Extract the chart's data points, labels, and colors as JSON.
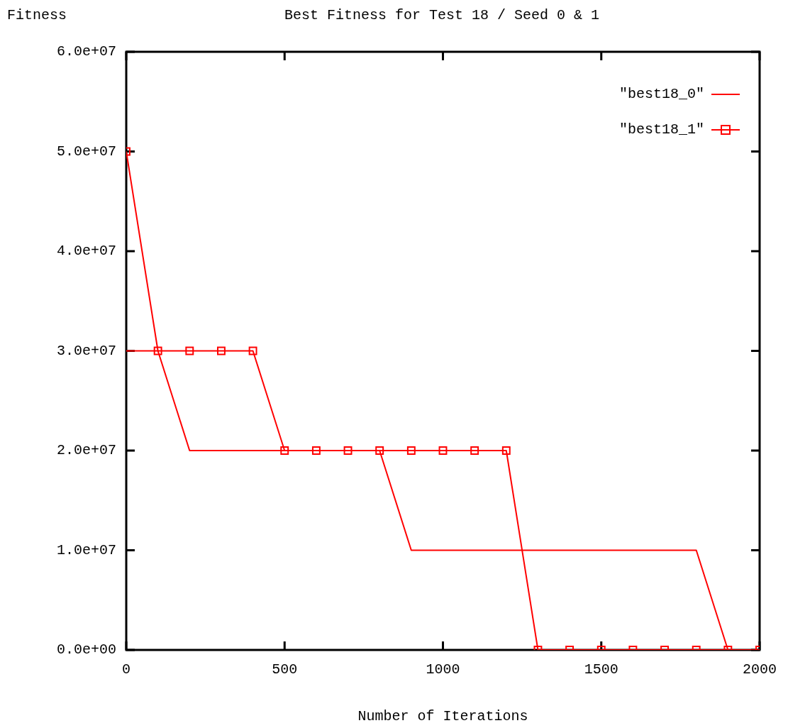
{
  "chart_data": {
    "type": "line",
    "title": "Best Fitness for Test 18 / Seed 0 & 1",
    "xlabel": "Number of Iterations",
    "ylabel": "Fitness",
    "x": [
      0,
      100,
      200,
      300,
      400,
      500,
      600,
      700,
      800,
      900,
      1000,
      1100,
      1200,
      1300,
      1400,
      1500,
      1600,
      1700,
      1800,
      1900,
      2000
    ],
    "series": [
      {
        "name": "\"best18_0\"",
        "color": "#ff0000",
        "marker": "none",
        "values": [
          30000000,
          30000000,
          20000000,
          20000000,
          20000000,
          20000000,
          20000000,
          20000000,
          20000000,
          10000000,
          10000000,
          10000000,
          10000000,
          10000000,
          10000000,
          10000000,
          10000000,
          10000000,
          10000000,
          0,
          0
        ]
      },
      {
        "name": "\"best18_1\"",
        "color": "#ff0000",
        "marker": "square",
        "values": [
          50000000,
          30000000,
          30000000,
          30000000,
          30000000,
          20000000,
          20000000,
          20000000,
          20000000,
          20000000,
          20000000,
          20000000,
          20000000,
          0,
          0,
          0,
          0,
          0,
          0,
          0,
          0
        ]
      }
    ],
    "xlim": [
      0,
      2000
    ],
    "xticks": [
      0,
      500,
      1000,
      1500,
      2000
    ],
    "ylim": [
      0,
      60000000
    ],
    "yticks": [
      {
        "value": 0,
        "label": "0.0e+00"
      },
      {
        "value": 10000000,
        "label": "1.0e+07"
      },
      {
        "value": 20000000,
        "label": "2.0e+07"
      },
      {
        "value": 30000000,
        "label": "3.0e+07"
      },
      {
        "value": 40000000,
        "label": "4.0e+07"
      },
      {
        "value": 50000000,
        "label": "5.0e+07"
      },
      {
        "value": 60000000,
        "label": "6.0e+07"
      }
    ],
    "grid": false,
    "legend": "top right",
    "line_style": "solid"
  }
}
